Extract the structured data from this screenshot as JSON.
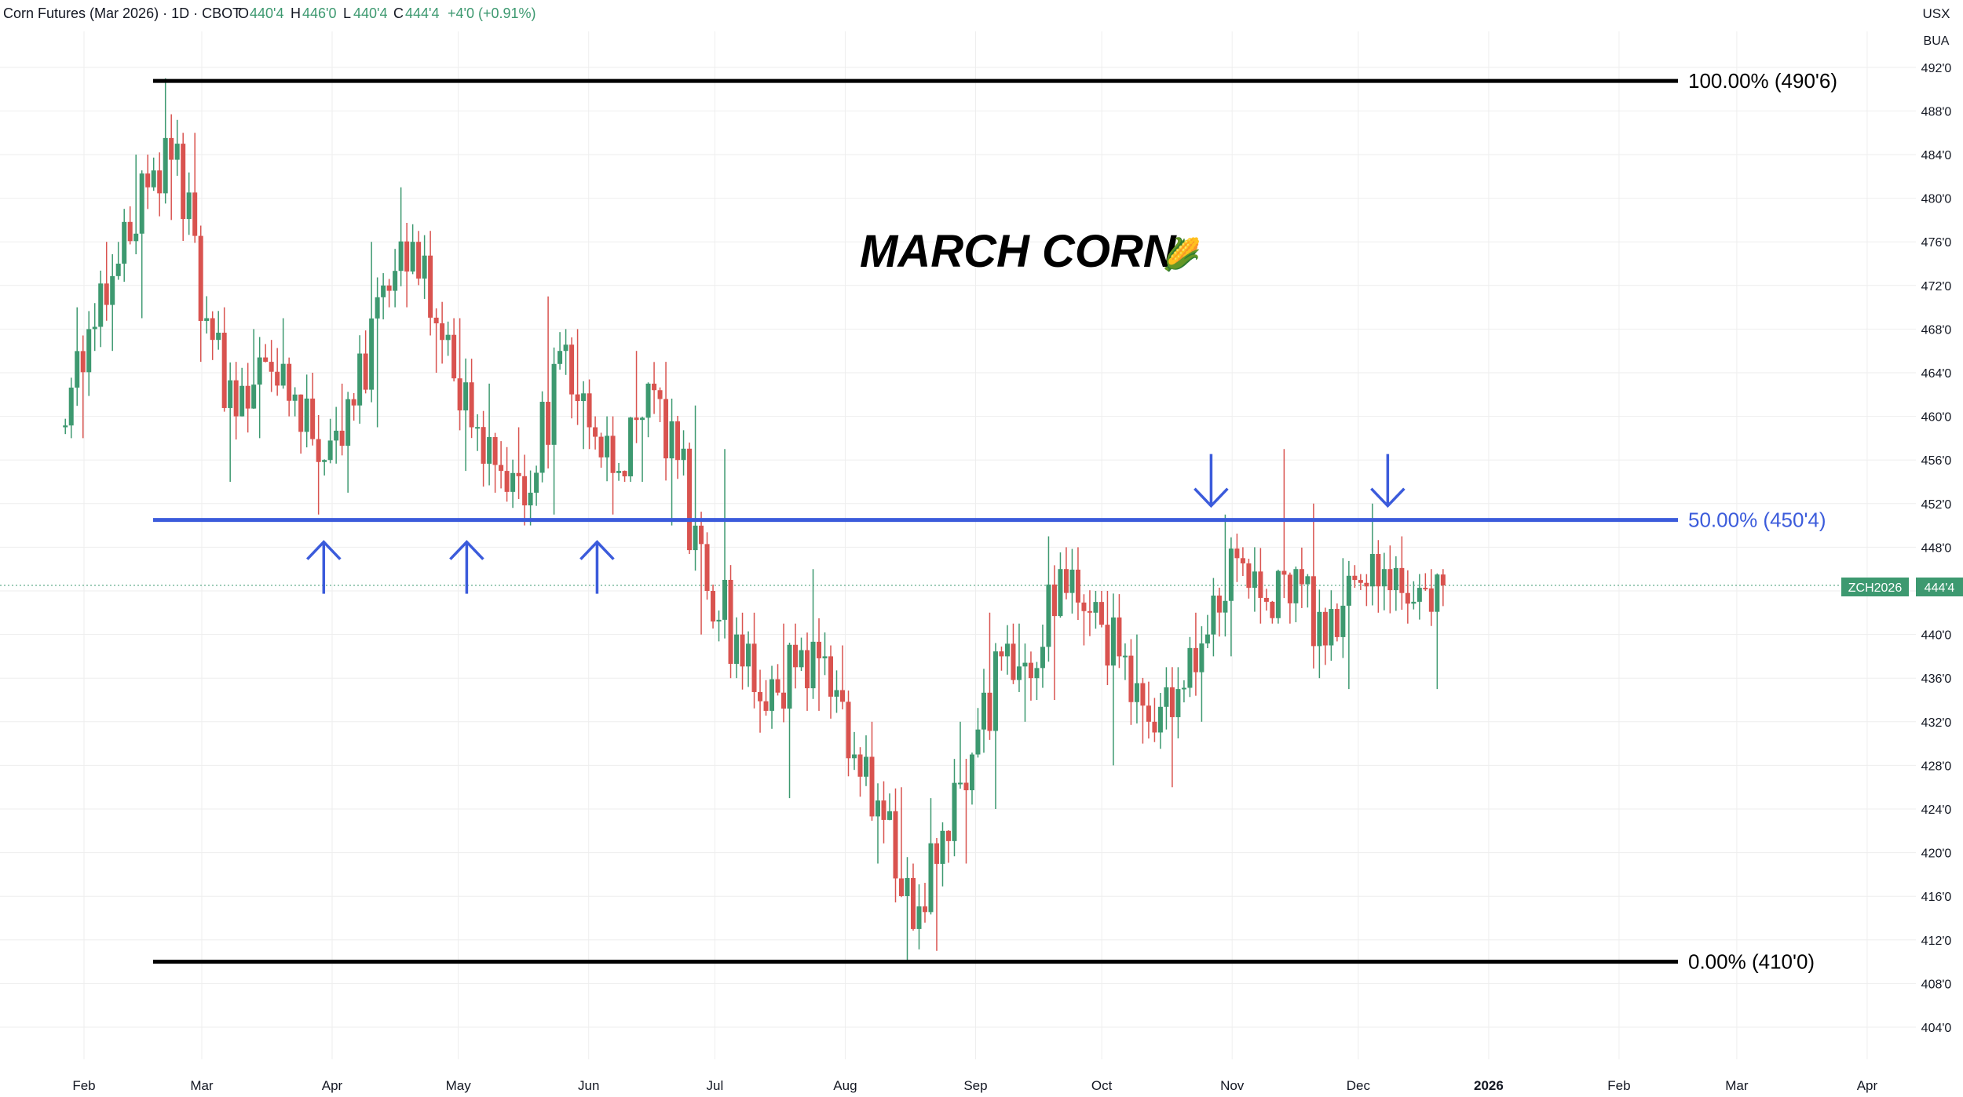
{
  "header": {
    "symbol_desc": "Corn Futures (Mar 2026) · 1D · CBOT",
    "open_label": "O",
    "open_value": "440'4",
    "high_label": "H",
    "high_value": "446'0",
    "low_label": "L",
    "low_value": "440'4",
    "close_label": "C",
    "close_value": "444'4",
    "change": "+4'0 (+0.91%)"
  },
  "currency_top": "USX",
  "currency_unit": "BUA",
  "price_tag": {
    "symbol": "ZCH2026",
    "value": "444'4"
  },
  "annotation_title": "MARCH CORN",
  "corn_emoji": "🌽",
  "colors": {
    "up": "#3d9970",
    "down": "#d9534f",
    "fib_mid": "#3b5bdb",
    "fib_ext": "#000000",
    "grid": "#eeeeee",
    "text": "#131722"
  },
  "chart_data": {
    "type": "candlestick",
    "title": "Corn Futures (Mar 2026) · 1D · CBOT",
    "xlabel": "",
    "ylabel": "",
    "ylim": [
      402,
      494
    ],
    "x_ticks": [
      "Feb",
      "Mar",
      "Apr",
      "May",
      "Jun",
      "Jul",
      "Aug",
      "Sep",
      "Oct",
      "Nov",
      "Dec",
      "2026",
      "Feb",
      "Mar",
      "Apr"
    ],
    "y_ticks": [
      "404'0",
      "408'0",
      "412'0",
      "416'0",
      "420'0",
      "424'0",
      "428'0",
      "432'0",
      "436'0",
      "440'0",
      "444'0",
      "448'0",
      "452'0",
      "456'0",
      "460'0",
      "464'0",
      "468'0",
      "472'0",
      "476'0",
      "480'0",
      "484'0",
      "488'0",
      "492'0"
    ],
    "grid": true,
    "fib_levels": [
      {
        "label": "100.00% (490'6)",
        "price": 490.75,
        "color": "#000000"
      },
      {
        "label": "50.00% (450'4)",
        "price": 450.5,
        "color": "#3b5bdb"
      },
      {
        "label": "0.00% (410'0)",
        "price": 410.0,
        "color": "#000000"
      }
    ],
    "arrows": [
      {
        "direction": "up",
        "date": "2025-03-30"
      },
      {
        "direction": "up",
        "date": "2025-05-03"
      },
      {
        "direction": "up",
        "date": "2025-06-03"
      },
      {
        "direction": "down",
        "date": "2025-10-27"
      },
      {
        "direction": "down",
        "date": "2025-12-08"
      }
    ],
    "candles_weekly": [
      {
        "date": "2025-01-27",
        "open": 459.0,
        "high": 470.0,
        "low": 458.0,
        "close": 468.0
      },
      {
        "date": "2025-02-03",
        "open": 468.0,
        "high": 476.0,
        "low": 466.0,
        "close": 474.0
      },
      {
        "date": "2025-02-10",
        "open": 474.0,
        "high": 484.0,
        "low": 469.0,
        "close": 481.0
      },
      {
        "date": "2025-02-17",
        "open": 481.0,
        "high": 491.0,
        "low": 478.0,
        "close": 485.0
      },
      {
        "date": "2025-02-24",
        "open": 485.0,
        "high": 486.0,
        "low": 465.0,
        "close": 469.0
      },
      {
        "date": "2025-03-03",
        "open": 469.0,
        "high": 470.0,
        "low": 454.0,
        "close": 460.0
      },
      {
        "date": "2025-03-10",
        "open": 460.0,
        "high": 468.0,
        "low": 458.0,
        "close": 465.0
      },
      {
        "date": "2025-03-17",
        "open": 465.0,
        "high": 469.0,
        "low": 460.0,
        "close": 462.0
      },
      {
        "date": "2025-03-24",
        "open": 462.0,
        "high": 464.0,
        "low": 451.0,
        "close": 456.0
      },
      {
        "date": "2025-03-31",
        "open": 456.0,
        "high": 463.0,
        "low": 453.0,
        "close": 461.0
      },
      {
        "date": "2025-04-07",
        "open": 461.0,
        "high": 476.0,
        "low": 459.0,
        "close": 472.0
      },
      {
        "date": "2025-04-14",
        "open": 472.0,
        "high": 481.0,
        "low": 470.0,
        "close": 476.0
      },
      {
        "date": "2025-04-21",
        "open": 476.0,
        "high": 477.0,
        "low": 464.0,
        "close": 467.0
      },
      {
        "date": "2025-04-28",
        "open": 467.0,
        "high": 469.0,
        "low": 455.0,
        "close": 459.0
      },
      {
        "date": "2025-05-05",
        "open": 459.0,
        "high": 463.0,
        "low": 453.0,
        "close": 455.0
      },
      {
        "date": "2025-05-12",
        "open": 455.0,
        "high": 459.0,
        "low": 450.0,
        "close": 453.0
      },
      {
        "date": "2025-05-19",
        "open": 453.0,
        "high": 471.0,
        "low": 451.0,
        "close": 466.0
      },
      {
        "date": "2025-05-26",
        "open": 466.0,
        "high": 468.0,
        "low": 457.0,
        "close": 459.0
      },
      {
        "date": "2025-06-02",
        "open": 459.0,
        "high": 460.0,
        "low": 451.0,
        "close": 455.0
      },
      {
        "date": "2025-06-09",
        "open": 455.0,
        "high": 466.0,
        "low": 454.0,
        "close": 463.0
      },
      {
        "date": "2025-06-16",
        "open": 463.0,
        "high": 465.0,
        "low": 450.0,
        "close": 456.0
      },
      {
        "date": "2025-06-23",
        "open": 456.0,
        "high": 461.0,
        "low": 440.0,
        "close": 444.0
      },
      {
        "date": "2025-06-30",
        "open": 444.0,
        "high": 457.0,
        "low": 436.0,
        "close": 440.0
      },
      {
        "date": "2025-07-07",
        "open": 440.0,
        "high": 442.0,
        "low": 431.0,
        "close": 433.0
      },
      {
        "date": "2025-07-14",
        "open": 433.0,
        "high": 441.0,
        "low": 425.0,
        "close": 437.0
      },
      {
        "date": "2025-07-21",
        "open": 437.0,
        "high": 446.0,
        "low": 433.0,
        "close": 438.0
      },
      {
        "date": "2025-07-28",
        "open": 438.0,
        "high": 439.0,
        "low": 427.0,
        "close": 429.0
      },
      {
        "date": "2025-08-04",
        "open": 429.0,
        "high": 432.0,
        "low": 419.0,
        "close": 423.0
      },
      {
        "date": "2025-08-11",
        "open": 423.0,
        "high": 426.0,
        "low": 410.0,
        "close": 413.0
      },
      {
        "date": "2025-08-18",
        "open": 413.0,
        "high": 425.0,
        "low": 411.0,
        "close": 422.0
      },
      {
        "date": "2025-08-25",
        "open": 422.0,
        "high": 432.0,
        "low": 419.0,
        "close": 429.0
      },
      {
        "date": "2025-09-01",
        "open": 429.0,
        "high": 442.0,
        "low": 424.0,
        "close": 438.0
      },
      {
        "date": "2025-09-08",
        "open": 438.0,
        "high": 441.0,
        "low": 432.0,
        "close": 436.0
      },
      {
        "date": "2025-09-15",
        "open": 436.0,
        "high": 449.0,
        "low": 434.0,
        "close": 446.0
      },
      {
        "date": "2025-09-22",
        "open": 446.0,
        "high": 448.0,
        "low": 439.0,
        "close": 442.0
      },
      {
        "date": "2025-09-29",
        "open": 442.0,
        "high": 444.0,
        "low": 428.0,
        "close": 438.0
      },
      {
        "date": "2025-10-06",
        "open": 438.0,
        "high": 440.0,
        "low": 430.0,
        "close": 432.0
      },
      {
        "date": "2025-10-13",
        "open": 432.0,
        "high": 437.0,
        "low": 426.0,
        "close": 435.0
      },
      {
        "date": "2025-10-20",
        "open": 435.0,
        "high": 442.0,
        "low": 432.0,
        "close": 440.0
      },
      {
        "date": "2025-10-27",
        "open": 440.0,
        "high": 451.0,
        "low": 438.0,
        "close": 447.0
      },
      {
        "date": "2025-11-03",
        "open": 447.0,
        "high": 448.0,
        "low": 441.0,
        "close": 443.0
      },
      {
        "date": "2025-11-10",
        "open": 443.0,
        "high": 457.0,
        "low": 441.0,
        "close": 446.0
      },
      {
        "date": "2025-11-17",
        "open": 446.0,
        "high": 452.0,
        "low": 436.0,
        "close": 439.0
      },
      {
        "date": "2025-11-24",
        "open": 439.0,
        "high": 447.0,
        "low": 435.0,
        "close": 445.0
      },
      {
        "date": "2025-12-01",
        "open": 445.0,
        "high": 452.0,
        "low": 442.0,
        "close": 446.0
      },
      {
        "date": "2025-12-08",
        "open": 446.0,
        "high": 449.0,
        "low": 441.0,
        "close": 443.0
      },
      {
        "date": "2025-12-15",
        "open": 443.0,
        "high": 446.0,
        "low": 435.0,
        "close": 444.5
      }
    ]
  }
}
